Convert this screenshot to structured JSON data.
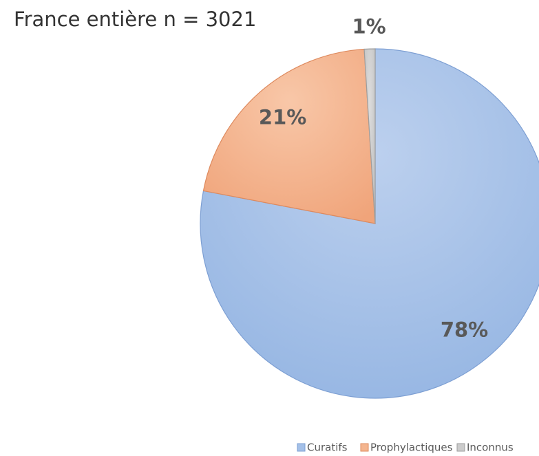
{
  "chart_data": {
    "type": "pie",
    "title": "France entière n = 3021",
    "categories": [
      "Curatifs",
      "Prophylactiques",
      "Inconnus"
    ],
    "values": [
      78,
      21,
      1
    ],
    "value_labels": [
      "78%",
      "21%",
      "1%"
    ],
    "colors": [
      "#a4c0e8",
      "#f4b58f",
      "#cccccc"
    ],
    "legend": "bottom"
  }
}
